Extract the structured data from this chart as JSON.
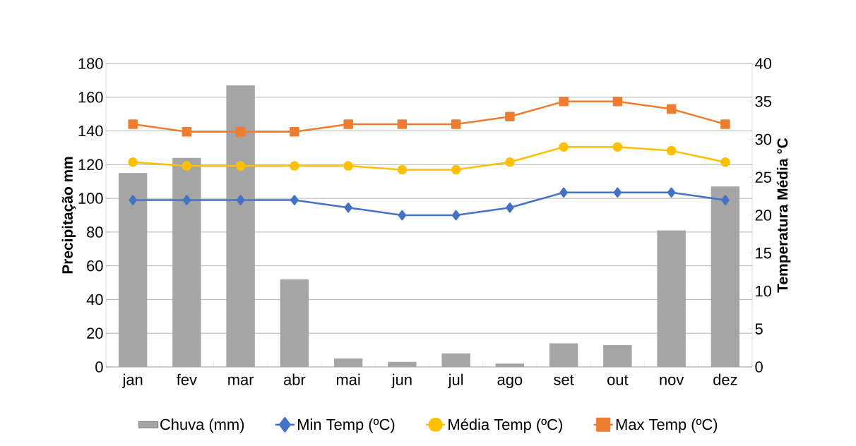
{
  "chart_data": {
    "type": "bar",
    "xlabel": null,
    "ylabel": "Precipitação mm",
    "y2label": "Temperatura Média °C",
    "categories": [
      "jan",
      "fev",
      "mar",
      "abr",
      "mai",
      "jun",
      "jul",
      "ago",
      "set",
      "out",
      "nov",
      "dez"
    ],
    "series": [
      {
        "name": "Chuva (mm)",
        "color": "#a5a5a5",
        "values": [
          115,
          124,
          167,
          52,
          5,
          3,
          8,
          2,
          14,
          13,
          81,
          107
        ]
      },
      {
        "name": "Min Temp (ºC)",
        "type": "line",
        "axis": "y2",
        "marker": "diamond",
        "color": "#4472c4",
        "values": [
          22,
          22,
          22,
          22,
          21,
          20,
          20,
          21,
          23,
          23,
          23,
          22
        ]
      },
      {
        "name": "Média Temp (ºC)",
        "type": "line",
        "axis": "y2",
        "marker": "circle",
        "color": "#ffc000",
        "values": [
          27,
          26.5,
          26.5,
          26.5,
          26.5,
          26,
          26,
          27,
          29,
          29,
          28.5,
          27
        ]
      },
      {
        "name": "Max Temp (ºC)",
        "type": "line",
        "axis": "y2",
        "marker": "square",
        "color": "#ed7d31",
        "values": [
          32,
          31,
          31,
          31,
          32,
          32,
          32,
          33,
          35,
          35,
          34,
          32
        ]
      }
    ],
    "ylim": [
      0,
      180
    ],
    "yticks": [
      0,
      20,
      40,
      60,
      80,
      100,
      120,
      140,
      160,
      180
    ],
    "y2lim": [
      0,
      40
    ],
    "y2ticks": [
      0,
      5,
      10,
      15,
      20,
      25,
      30,
      35,
      40
    ],
    "grid": "y",
    "legend": "bottom"
  }
}
